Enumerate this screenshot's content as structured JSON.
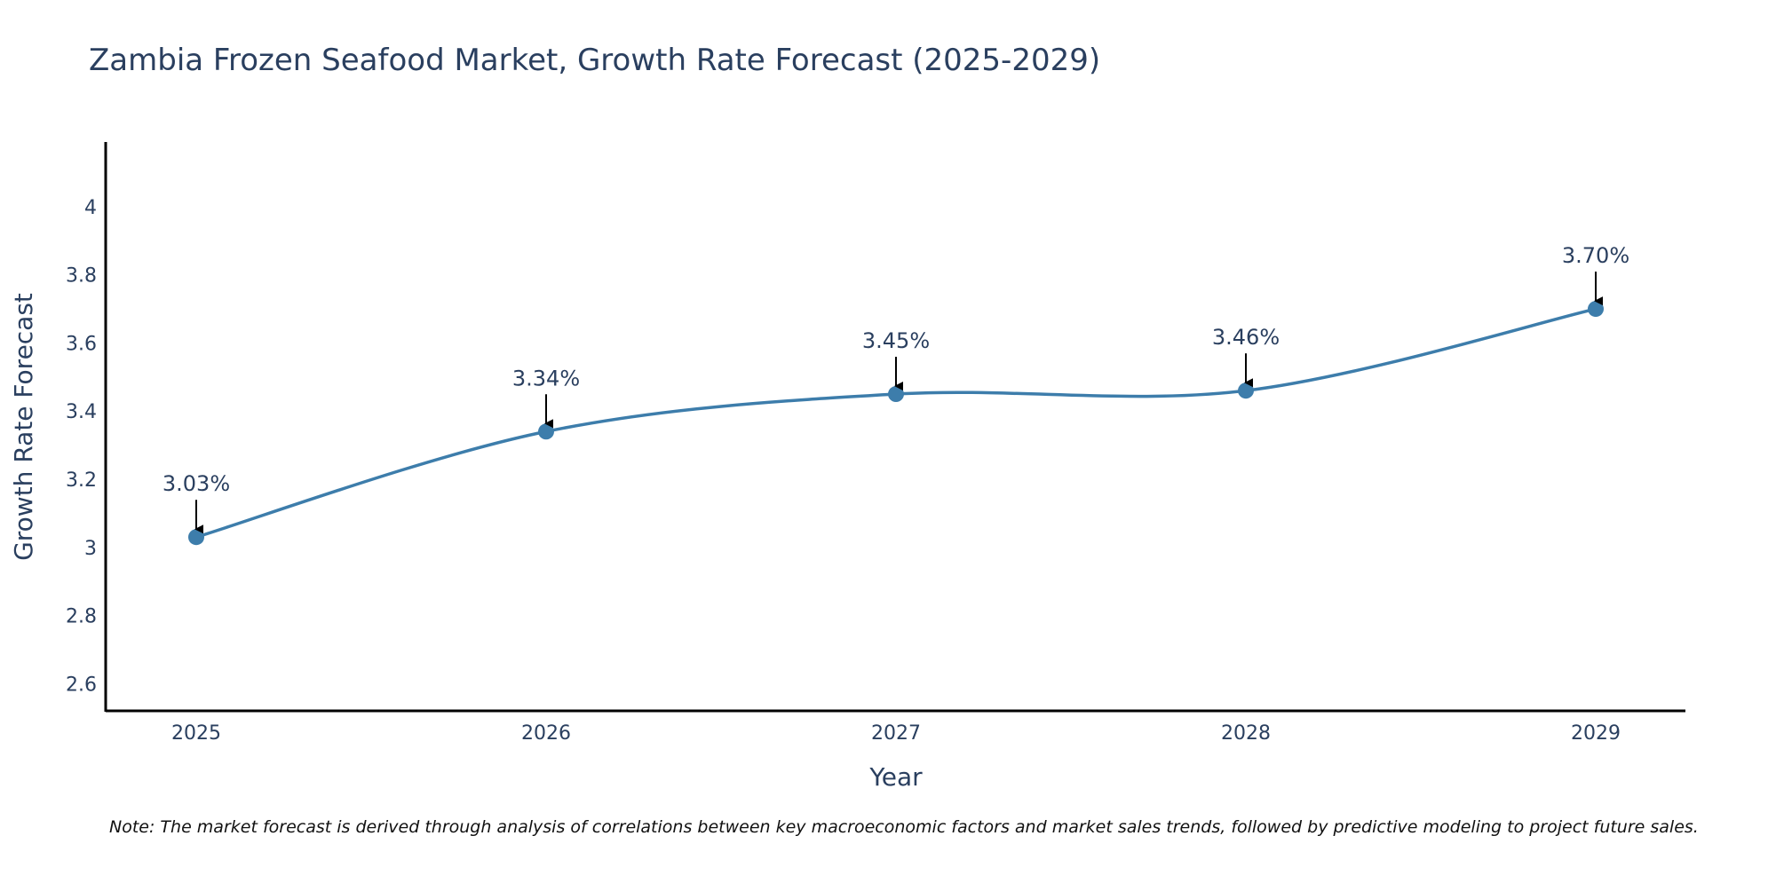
{
  "chart_data": {
    "type": "line",
    "title": "Zambia Frozen Seafood Market, Growth Rate Forecast (2025-2029)",
    "xlabel": "Year",
    "ylabel": "Growth Rate Forecast",
    "categories": [
      "2025",
      "2026",
      "2027",
      "2028",
      "2029"
    ],
    "series": [
      {
        "name": "Growth Rate Forecast",
        "values": [
          3.03,
          3.34,
          3.45,
          3.46,
          3.7
        ],
        "labels": [
          "3.03%",
          "3.34%",
          "3.45%",
          "3.46%",
          "3.70%"
        ],
        "color": "#3d7dab"
      }
    ],
    "ylim": [
      2.52,
      4.19
    ],
    "y_ticks": [
      2.6,
      2.8,
      3,
      3.2,
      3.4,
      3.6,
      3.8,
      4
    ],
    "y_tick_labels": [
      "2.6",
      "2.8",
      "3",
      "3.2",
      "3.4",
      "3.6",
      "3.8",
      "4"
    ],
    "line_shape": "spline",
    "grid": false,
    "annotations": "arrows pointing to each data point"
  },
  "note": "Note: The market forecast is derived through analysis of correlations between key macroeconomic factors and market sales trends, followed by predictive modeling to project future sales."
}
